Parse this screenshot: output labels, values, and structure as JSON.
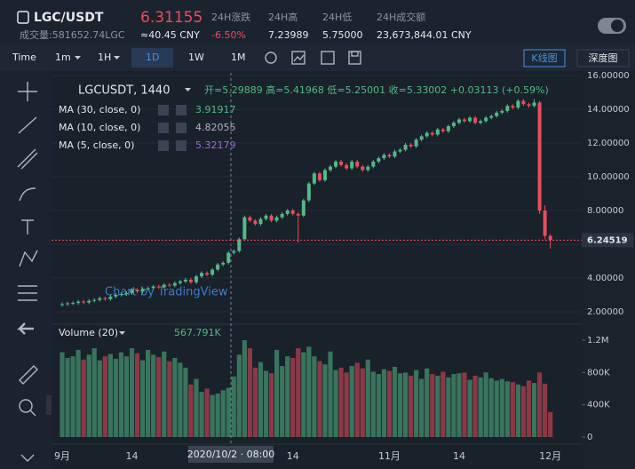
{
  "header": {
    "symbol": "LGC/USDT",
    "price": "6.31155",
    "volume": "成交量:581652.74LGC",
    "cny": "≈40.45 CNY",
    "stats": [
      {
        "label": "24H涨跌",
        "value": "-6.50%"
      },
      {
        "label": "24H高",
        "value": "7.23989"
      },
      {
        "label": "24H低",
        "value": "5.75000"
      },
      {
        "label": "24H成交额",
        "value": "23,673,844.01 CNY"
      }
    ]
  },
  "toolbar": {
    "intervals": [
      "Time",
      "1m",
      "1H",
      "1D",
      "1W",
      "1M"
    ],
    "views": [
      "K线图",
      "深度图"
    ]
  },
  "chart_data": {
    "type": "candlestick",
    "symbol_label": "LGCUSDT, 1440",
    "ohlc_label": "开=5.29889 高=5.41968 低=5.25001 收=5.33002 +0.03113 (+0.59%)",
    "indicators": [
      {
        "name": "MA (30, close, 0)",
        "value": "3.91917",
        "color": "#53b987"
      },
      {
        "name": "MA (10, close, 0)",
        "value": "4.82055",
        "color": "#b2b5be"
      },
      {
        "name": "MA (5, close, 0)",
        "value": "5.32179",
        "color": "#9c6bd6"
      }
    ],
    "volume_label": "Volume (20)",
    "volume_value": "567.791K",
    "watermark": "Chart by TradingView",
    "crosshair_label": "2020/10/2 · 08:00",
    "up_color": "#53b987",
    "down_color": "#eb4d5c",
    "current_price": 6.24519,
    "ylim": [
      1.42,
      16.16
    ],
    "yticks": [
      {
        "value": 2,
        "label": "2.00000"
      },
      {
        "value": 4,
        "label": "4.00000"
      },
      {
        "value": 6,
        "label": "6.00000"
      },
      {
        "value": 8,
        "label": "8.00000"
      },
      {
        "value": 10,
        "label": "10.00000"
      },
      {
        "value": 12,
        "label": "12.00000"
      },
      {
        "value": 14,
        "label": "14.00000"
      },
      {
        "value": 16,
        "label": "16.00000"
      }
    ],
    "volume_ylim": [
      0,
      1365000
    ],
    "volume_yticks": [
      0,
      {
        "value": 400000,
        "label": "400K"
      },
      {
        "value": 800000,
        "label": "800K"
      },
      {
        "value": 1200000,
        "label": "1.2M"
      }
    ],
    "categories": [
      "9月",
      null,
      null,
      null,
      null,
      null,
      null,
      null,
      null,
      null,
      null,
      null,
      null,
      "14",
      null,
      null,
      null,
      null,
      null,
      null,
      null,
      null,
      null,
      null,
      null,
      null,
      null,
      null,
      null,
      null,
      null,
      null,
      null,
      null,
      null,
      null,
      null,
      null,
      null,
      null,
      null,
      null,
      null,
      "14",
      null,
      null,
      null,
      null,
      null,
      null,
      null,
      null,
      null,
      null,
      null,
      null,
      null,
      null,
      null,
      null,
      null,
      "11月",
      null,
      null,
      null,
      null,
      null,
      null,
      null,
      null,
      null,
      null,
      null,
      null,
      "14",
      null,
      null,
      null,
      null,
      null,
      null,
      null,
      null,
      null,
      null,
      null,
      null,
      null,
      null,
      null,
      null,
      "12月"
    ],
    "series": [
      {
        "name": "LGCUSDT",
        "ohlc": [
          [
            2.4,
            2.55,
            2.3,
            2.45
          ],
          [
            2.45,
            2.6,
            2.35,
            2.5
          ],
          [
            2.5,
            2.62,
            2.4,
            2.52
          ],
          [
            2.52,
            2.7,
            2.42,
            2.6
          ],
          [
            2.6,
            2.7,
            2.45,
            2.55
          ],
          [
            2.55,
            2.75,
            2.45,
            2.65
          ],
          [
            2.65,
            2.8,
            2.55,
            2.7
          ],
          [
            2.7,
            2.9,
            2.6,
            2.8
          ],
          [
            2.8,
            2.9,
            2.65,
            2.75
          ],
          [
            2.75,
            3.0,
            2.65,
            2.9
          ],
          [
            2.9,
            3.1,
            2.8,
            3.0
          ],
          [
            3.0,
            3.15,
            2.9,
            3.05
          ],
          [
            3.05,
            3.2,
            2.95,
            3.1
          ],
          [
            3.1,
            3.4,
            3.0,
            3.3
          ],
          [
            3.3,
            3.4,
            3.1,
            3.2
          ],
          [
            3.2,
            3.45,
            3.1,
            3.35
          ],
          [
            3.35,
            3.5,
            3.25,
            3.4
          ],
          [
            3.4,
            3.6,
            3.3,
            3.5
          ],
          [
            3.5,
            3.6,
            3.35,
            3.45
          ],
          [
            3.45,
            3.7,
            3.35,
            3.6
          ],
          [
            3.6,
            3.7,
            3.45,
            3.55
          ],
          [
            3.55,
            3.8,
            3.45,
            3.7
          ],
          [
            3.7,
            3.9,
            3.6,
            3.8
          ],
          [
            3.8,
            4.0,
            3.7,
            3.9
          ],
          [
            3.9,
            4.0,
            3.65,
            3.75
          ],
          [
            3.75,
            4.2,
            3.65,
            4.1
          ],
          [
            4.1,
            4.4,
            4.0,
            4.3
          ],
          [
            4.3,
            4.4,
            4.1,
            4.2
          ],
          [
            4.2,
            4.6,
            4.1,
            4.5
          ],
          [
            4.5,
            4.9,
            4.4,
            4.8
          ],
          [
            4.8,
            5.0,
            4.7,
            4.9
          ],
          [
            4.9,
            5.6,
            4.8,
            5.5
          ],
          [
            5.5,
            5.7,
            5.4,
            5.6
          ],
          [
            5.6,
            6.4,
            5.5,
            6.3
          ],
          [
            6.3,
            7.7,
            6.2,
            7.6
          ],
          [
            7.6,
            7.7,
            7.3,
            7.4
          ],
          [
            7.4,
            7.5,
            7.1,
            7.2
          ],
          [
            7.2,
            7.6,
            7.1,
            7.5
          ],
          [
            7.5,
            7.8,
            7.4,
            7.7
          ],
          [
            7.7,
            7.8,
            7.3,
            7.4
          ],
          [
            7.4,
            7.7,
            7.3,
            7.6
          ],
          [
            7.6,
            7.9,
            7.5,
            7.8
          ],
          [
            7.8,
            8.1,
            7.7,
            8.0
          ],
          [
            8.0,
            8.1,
            7.7,
            7.8
          ],
          [
            7.8,
            7.9,
            6.1,
            7.7
          ],
          [
            7.7,
            8.7,
            7.6,
            8.6
          ],
          [
            8.6,
            9.7,
            8.5,
            9.6
          ],
          [
            9.6,
            10.3,
            9.5,
            10.2
          ],
          [
            10.2,
            10.3,
            9.7,
            9.8
          ],
          [
            9.8,
            10.5,
            9.7,
            10.4
          ],
          [
            10.4,
            10.7,
            10.3,
            10.6
          ],
          [
            10.6,
            11.0,
            10.5,
            10.9
          ],
          [
            10.9,
            11.0,
            10.6,
            10.7
          ],
          [
            10.7,
            10.8,
            10.4,
            10.5
          ],
          [
            10.5,
            11.0,
            10.4,
            10.9
          ],
          [
            10.9,
            11.0,
            10.5,
            10.6
          ],
          [
            10.6,
            10.7,
            10.3,
            10.4
          ],
          [
            10.4,
            10.7,
            10.3,
            10.6
          ],
          [
            10.6,
            11.0,
            10.5,
            10.9
          ],
          [
            10.9,
            11.2,
            10.8,
            11.1
          ],
          [
            11.1,
            11.4,
            11.0,
            11.3
          ],
          [
            11.3,
            11.4,
            11.1,
            11.2
          ],
          [
            11.2,
            11.6,
            11.1,
            11.5
          ],
          [
            11.5,
            11.7,
            11.4,
            11.6
          ],
          [
            11.6,
            12.0,
            11.5,
            11.9
          ],
          [
            11.9,
            12.0,
            11.7,
            11.8
          ],
          [
            11.8,
            12.3,
            11.7,
            12.2
          ],
          [
            12.2,
            12.5,
            12.1,
            12.4
          ],
          [
            12.4,
            12.7,
            12.3,
            12.6
          ],
          [
            12.6,
            12.7,
            12.4,
            12.5
          ],
          [
            12.5,
            12.9,
            12.4,
            12.8
          ],
          [
            12.8,
            12.9,
            12.6,
            12.7
          ],
          [
            12.7,
            13.1,
            12.6,
            13.0
          ],
          [
            13.0,
            13.3,
            12.9,
            13.2
          ],
          [
            13.2,
            13.5,
            13.1,
            13.4
          ],
          [
            13.4,
            13.5,
            13.2,
            13.3
          ],
          [
            13.3,
            13.6,
            13.2,
            13.5
          ],
          [
            13.5,
            13.6,
            13.1,
            13.2
          ],
          [
            13.2,
            13.4,
            13.1,
            13.3
          ],
          [
            13.3,
            13.6,
            13.2,
            13.5
          ],
          [
            13.5,
            13.7,
            13.4,
            13.6
          ],
          [
            13.6,
            13.9,
            13.5,
            13.8
          ],
          [
            13.8,
            14.0,
            13.7,
            13.9
          ],
          [
            13.9,
            14.3,
            13.8,
            14.2
          ],
          [
            14.2,
            14.3,
            14.0,
            14.1
          ],
          [
            14.1,
            14.6,
            14.0,
            14.5
          ],
          [
            14.5,
            14.6,
            14.2,
            14.3
          ],
          [
            14.3,
            14.4,
            14.1,
            14.2
          ],
          [
            14.2,
            14.6,
            14.1,
            14.4
          ],
          [
            14.4,
            14.5,
            7.8,
            8.0
          ],
          [
            8.0,
            8.3,
            6.3,
            6.5
          ],
          [
            6.5,
            6.6,
            5.75,
            6.25
          ]
        ],
        "volume": [
          1050000.0,
          980000.0,
          1000000.0,
          1080000.0,
          960000.0,
          1020000.0,
          1100000.0,
          950000.0,
          1000000.0,
          1030000.0,
          970000.0,
          1050000.0,
          1000000.0,
          1100000.0,
          1040000.0,
          950000.0,
          1080000.0,
          1020000.0,
          990000.0,
          1060000.0,
          940000.0,
          980000.0,
          920000.0,
          860000.0,
          650000.0,
          720000.0,
          560000.0,
          600000.0,
          520000.0,
          540000.0,
          580000.0,
          610000.0,
          750000.0,
          1020000.0,
          1200000.0,
          1100000.0,
          860000.0,
          930000.0,
          820000.0,
          790000.0,
          1080000.0,
          880000.0,
          1000000.0,
          980000.0,
          1100000.0,
          1050000.0,
          1120000.0,
          1000000.0,
          940000.0,
          900000.0,
          1060000.0,
          830000.0,
          860000.0,
          800000.0,
          880000.0,
          920000.0,
          850000.0,
          960000.0,
          810000.0,
          780000.0,
          840000.0,
          820000.0,
          870000.0,
          790000.0,
          800000.0,
          760000.0,
          830000.0,
          720000.0,
          850000.0,
          780000.0,
          760000.0,
          810000.0,
          740000.0,
          780000.0,
          790000.0,
          800000.0,
          710000.0,
          760000.0,
          740000.0,
          800000.0,
          730000.0,
          700000.0,
          720000.0,
          690000.0,
          680000.0,
          650000.0,
          630000.0,
          700000.0,
          670000.0,
          800000.0,
          660000.0,
          310000.0
        ]
      }
    ]
  }
}
